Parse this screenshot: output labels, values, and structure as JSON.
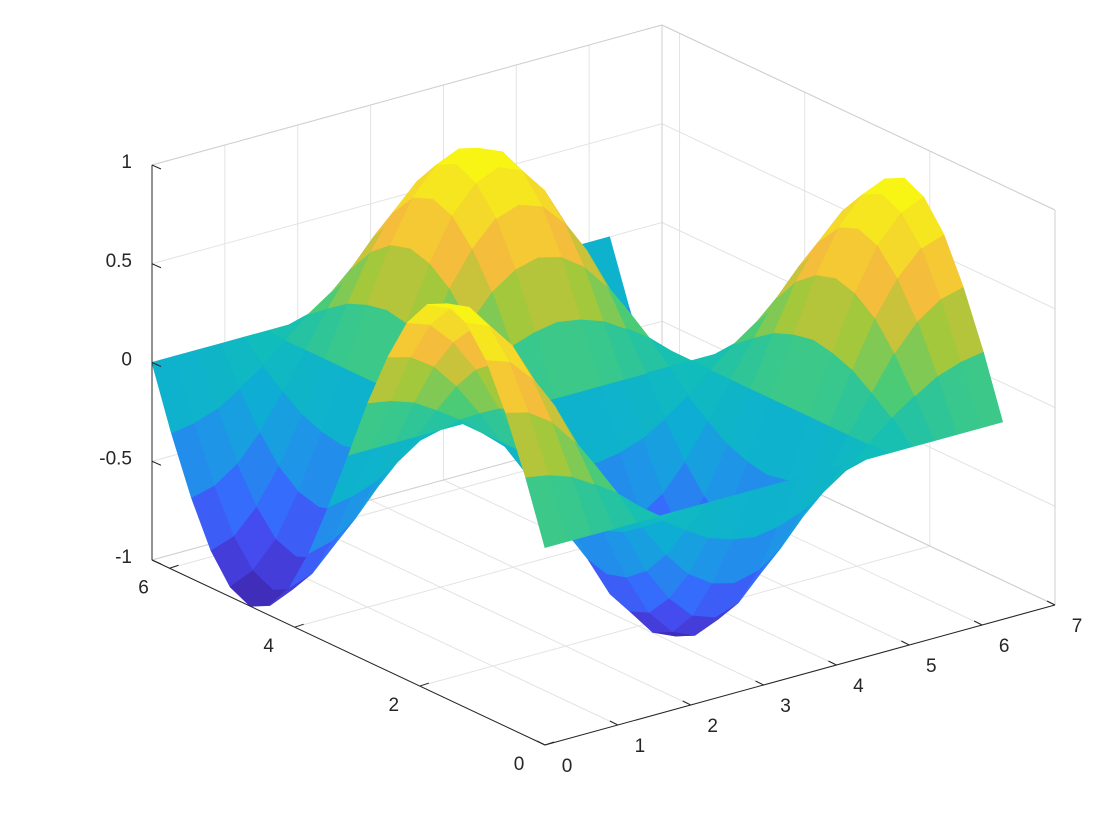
{
  "chart_data": {
    "type": "surface",
    "x": [
      0,
      0.31,
      0.63,
      0.94,
      1.26,
      1.57,
      1.88,
      2.2,
      2.51,
      2.83,
      3.14,
      3.46,
      3.77,
      4.08,
      4.4,
      4.71,
      5.03,
      5.34,
      5.65,
      5.97,
      6.28
    ],
    "y": [
      0,
      0.31,
      0.63,
      0.94,
      1.26,
      1.57,
      1.88,
      2.2,
      2.51,
      2.83,
      3.14,
      3.46,
      3.77,
      4.08,
      4.4,
      4.71,
      5.03,
      5.34,
      5.65,
      5.97,
      6.28
    ],
    "z": [
      [
        0,
        0,
        0,
        0,
        0,
        0,
        0,
        0,
        0,
        0,
        0,
        0,
        0,
        0,
        0,
        0,
        0,
        0,
        0,
        0,
        0
      ],
      [
        0.31,
        0.29,
        0.25,
        0.18,
        0.1,
        0,
        -0.1,
        -0.18,
        -0.25,
        -0.29,
        -0.31,
        -0.29,
        -0.25,
        -0.18,
        -0.1,
        0,
        0.1,
        0.18,
        0.25,
        0.29,
        0.31
      ],
      [
        0.59,
        0.56,
        0.48,
        0.35,
        0.18,
        0,
        -0.18,
        -0.35,
        -0.48,
        -0.56,
        -0.59,
        -0.56,
        -0.48,
        -0.35,
        -0.18,
        0,
        0.18,
        0.35,
        0.48,
        0.56,
        0.59
      ],
      [
        0.81,
        0.77,
        0.65,
        0.48,
        0.25,
        0,
        -0.25,
        -0.48,
        -0.65,
        -0.77,
        -0.81,
        -0.77,
        -0.65,
        -0.48,
        -0.25,
        0,
        0.25,
        0.48,
        0.65,
        0.77,
        0.81
      ],
      [
        0.95,
        0.9,
        0.77,
        0.56,
        0.29,
        0,
        -0.29,
        -0.56,
        -0.77,
        -0.9,
        -0.95,
        -0.9,
        -0.77,
        -0.56,
        -0.29,
        0,
        0.29,
        0.56,
        0.77,
        0.9,
        0.95
      ],
      [
        1,
        0.95,
        0.81,
        0.59,
        0.31,
        0,
        -0.31,
        -0.59,
        -0.81,
        -0.95,
        -1,
        -0.95,
        -0.81,
        -0.59,
        -0.31,
        0,
        0.31,
        0.59,
        0.81,
        0.95,
        1
      ],
      [
        0.95,
        0.9,
        0.77,
        0.56,
        0.29,
        0,
        -0.29,
        -0.56,
        -0.77,
        -0.9,
        -0.95,
        -0.9,
        -0.77,
        -0.56,
        -0.29,
        0,
        0.29,
        0.56,
        0.77,
        0.9,
        0.95
      ],
      [
        0.81,
        0.77,
        0.65,
        0.48,
        0.25,
        0,
        -0.25,
        -0.48,
        -0.65,
        -0.77,
        -0.81,
        -0.77,
        -0.65,
        -0.48,
        -0.25,
        0,
        0.25,
        0.48,
        0.65,
        0.77,
        0.81
      ],
      [
        0.59,
        0.56,
        0.48,
        0.35,
        0.18,
        0,
        -0.18,
        -0.35,
        -0.48,
        -0.56,
        -0.59,
        -0.56,
        -0.48,
        -0.35,
        -0.18,
        0,
        0.18,
        0.35,
        0.48,
        0.56,
        0.59
      ],
      [
        0.31,
        0.29,
        0.25,
        0.18,
        0.1,
        0,
        -0.1,
        -0.18,
        -0.25,
        -0.29,
        -0.31,
        -0.29,
        -0.25,
        -0.18,
        -0.1,
        0,
        0.1,
        0.18,
        0.25,
        0.29,
        0.31
      ],
      [
        0,
        0,
        0,
        0,
        0,
        0,
        0,
        0,
        0,
        0,
        0,
        0,
        0,
        0,
        0,
        0,
        0,
        0,
        0,
        0,
        0
      ],
      [
        -0.31,
        -0.29,
        -0.25,
        -0.18,
        -0.1,
        0,
        0.1,
        0.18,
        0.25,
        0.29,
        0.31,
        0.29,
        0.25,
        0.18,
        0.1,
        0,
        -0.1,
        -0.18,
        -0.25,
        -0.29,
        -0.31
      ],
      [
        -0.59,
        -0.56,
        -0.48,
        -0.35,
        -0.18,
        0,
        0.18,
        0.35,
        0.48,
        0.56,
        0.59,
        0.56,
        0.48,
        0.35,
        0.18,
        0,
        -0.18,
        -0.35,
        -0.48,
        -0.56,
        -0.59
      ],
      [
        -0.81,
        -0.77,
        -0.65,
        -0.48,
        -0.25,
        0,
        0.25,
        0.48,
        0.65,
        0.77,
        0.81,
        0.77,
        0.65,
        0.48,
        0.25,
        0,
        -0.25,
        -0.48,
        -0.65,
        -0.77,
        -0.81
      ],
      [
        -0.95,
        -0.9,
        -0.77,
        -0.56,
        -0.29,
        0,
        0.29,
        0.56,
        0.77,
        0.9,
        0.95,
        0.9,
        0.77,
        0.56,
        0.29,
        0,
        -0.29,
        -0.56,
        -0.77,
        -0.9,
        -0.95
      ],
      [
        -1,
        -0.95,
        -0.81,
        -0.59,
        -0.31,
        0,
        0.31,
        0.59,
        0.81,
        0.95,
        1,
        0.95,
        0.81,
        0.59,
        0.31,
        0,
        -0.31,
        -0.59,
        -0.81,
        -0.95,
        -1
      ],
      [
        -0.95,
        -0.9,
        -0.77,
        -0.56,
        -0.29,
        0,
        0.29,
        0.56,
        0.77,
        0.9,
        0.95,
        0.9,
        0.77,
        0.56,
        0.29,
        0,
        -0.29,
        -0.56,
        -0.77,
        -0.9,
        -0.95
      ],
      [
        -0.81,
        -0.77,
        -0.65,
        -0.48,
        -0.25,
        0,
        0.25,
        0.48,
        0.65,
        0.77,
        0.81,
        0.77,
        0.65,
        0.48,
        0.25,
        0,
        -0.25,
        -0.48,
        -0.65,
        -0.77,
        -0.81
      ],
      [
        -0.59,
        -0.56,
        -0.48,
        -0.35,
        -0.18,
        0,
        0.18,
        0.35,
        0.48,
        0.56,
        0.59,
        0.56,
        0.48,
        0.35,
        0.18,
        0,
        -0.18,
        -0.35,
        -0.48,
        -0.56,
        -0.59
      ],
      [
        -0.31,
        -0.29,
        -0.25,
        -0.18,
        -0.1,
        0,
        0.1,
        0.18,
        0.25,
        0.29,
        0.31,
        0.29,
        0.25,
        0.18,
        0.1,
        0,
        -0.1,
        -0.18,
        -0.25,
        -0.29,
        -0.31
      ],
      [
        0,
        0,
        0,
        0,
        0,
        0,
        0,
        0,
        0,
        0,
        0,
        0,
        0,
        0,
        0,
        0,
        0,
        0,
        0,
        0,
        0
      ]
    ],
    "xlim": [
      0,
      7
    ],
    "xticks": [
      0,
      1,
      2,
      3,
      4,
      5,
      6,
      7
    ],
    "ylim": [
      0,
      6.28
    ],
    "yticks": [
      0,
      2,
      4,
      6
    ],
    "zlim": [
      -1,
      1
    ],
    "zticks": [
      -1,
      -0.5,
      0,
      0.5,
      1
    ],
    "colormap": "parula",
    "grid": true
  }
}
